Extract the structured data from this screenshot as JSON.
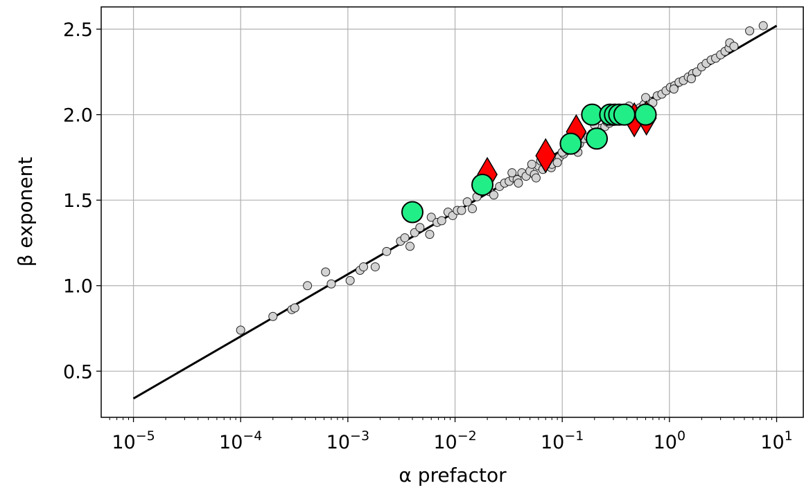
{
  "chart_data": {
    "type": "scatter",
    "title": "",
    "xlabel": "α prefactor",
    "ylabel": "β exponent",
    "x_scale": "log",
    "xlim": [
      5e-06,
      18
    ],
    "ylim": [
      0.23,
      2.63
    ],
    "grid": true,
    "legend": "none",
    "xticks": [
      {
        "value": 1e-05,
        "base": "10",
        "exp": "−5"
      },
      {
        "value": 0.0001,
        "base": "10",
        "exp": "−4"
      },
      {
        "value": 0.001,
        "base": "10",
        "exp": "−3"
      },
      {
        "value": 0.01,
        "base": "10",
        "exp": "−2"
      },
      {
        "value": 0.1,
        "base": "10",
        "exp": "−1"
      },
      {
        "value": 1,
        "base": "10",
        "exp": "0"
      },
      {
        "value": 10,
        "base": "10",
        "exp": "1"
      }
    ],
    "yticks": [
      {
        "value": 0.5,
        "label": "0.5"
      },
      {
        "value": 1.0,
        "label": "1.0"
      },
      {
        "value": 1.5,
        "label": "1.5"
      },
      {
        "value": 2.0,
        "label": "2.0"
      },
      {
        "value": 2.5,
        "label": "2.5"
      }
    ],
    "series": [
      {
        "marker": "circle-small",
        "color": "#d3d3d3",
        "points": [
          [
            0.0001,
            0.74
          ],
          [
            0.0002,
            0.82
          ],
          [
            0.0003,
            0.86
          ],
          [
            0.00032,
            0.87
          ],
          [
            0.00042,
            1.0
          ],
          [
            0.00062,
            1.08
          ],
          [
            0.0007,
            1.01
          ],
          [
            0.00105,
            1.03
          ],
          [
            0.0013,
            1.09
          ],
          [
            0.0014,
            1.11
          ],
          [
            0.0018,
            1.11
          ],
          [
            0.0023,
            1.2
          ],
          [
            0.0031,
            1.26
          ],
          [
            0.0034,
            1.28
          ],
          [
            0.0038,
            1.23
          ],
          [
            0.0042,
            1.31
          ],
          [
            0.0047,
            1.34
          ],
          [
            0.0058,
            1.3
          ],
          [
            0.006,
            1.4
          ],
          [
            0.0068,
            1.37
          ],
          [
            0.0075,
            1.38
          ],
          [
            0.0086,
            1.43
          ],
          [
            0.0095,
            1.41
          ],
          [
            0.0105,
            1.44
          ],
          [
            0.0115,
            1.44
          ],
          [
            0.013,
            1.49
          ],
          [
            0.0145,
            1.45
          ],
          [
            0.016,
            1.52
          ],
          [
            0.019,
            1.56
          ],
          [
            0.021,
            1.55
          ],
          [
            0.023,
            1.53
          ],
          [
            0.026,
            1.58
          ],
          [
            0.029,
            1.6
          ],
          [
            0.032,
            1.61
          ],
          [
            0.035,
            1.63
          ],
          [
            0.038,
            1.62
          ],
          [
            0.042,
            1.66
          ],
          [
            0.046,
            1.64
          ],
          [
            0.05,
            1.67
          ],
          [
            0.055,
            1.65
          ],
          [
            0.06,
            1.7
          ],
          [
            0.066,
            1.68
          ],
          [
            0.072,
            1.71
          ],
          [
            0.079,
            1.69
          ],
          [
            0.086,
            1.74
          ],
          [
            0.094,
            1.75
          ],
          [
            0.103,
            1.77
          ],
          [
            0.112,
            1.79
          ],
          [
            0.122,
            1.8
          ],
          [
            0.133,
            1.84
          ],
          [
            0.145,
            1.83
          ],
          [
            0.16,
            1.86
          ],
          [
            0.175,
            1.87
          ],
          [
            0.19,
            1.89
          ],
          [
            0.21,
            1.9
          ],
          [
            0.23,
            1.92
          ],
          [
            0.25,
            1.93
          ],
          [
            0.275,
            1.95
          ],
          [
            0.3,
            1.96
          ],
          [
            0.33,
            1.97
          ],
          [
            0.36,
            1.98
          ],
          [
            0.4,
            2.0
          ],
          [
            0.44,
            2.01
          ],
          [
            0.48,
            2.03
          ],
          [
            0.53,
            2.04
          ],
          [
            0.58,
            2.06
          ],
          [
            0.64,
            2.08
          ],
          [
            0.7,
            2.07
          ],
          [
            0.77,
            2.11
          ],
          [
            0.85,
            2.12
          ],
          [
            0.93,
            2.14
          ],
          [
            1.02,
            2.16
          ],
          [
            1.12,
            2.17
          ],
          [
            1.23,
            2.19
          ],
          [
            1.35,
            2.2
          ],
          [
            1.5,
            2.22
          ],
          [
            1.65,
            2.24
          ],
          [
            1.8,
            2.25
          ],
          [
            2.0,
            2.28
          ],
          [
            2.2,
            2.3
          ],
          [
            2.45,
            2.32
          ],
          [
            2.7,
            2.33
          ],
          [
            3.0,
            2.35
          ],
          [
            3.3,
            2.37
          ],
          [
            3.6,
            2.39
          ],
          [
            3.65,
            2.42
          ],
          [
            4.0,
            2.4
          ],
          [
            5.6,
            2.49
          ],
          [
            7.5,
            2.52
          ],
          [
            0.052,
            1.71
          ],
          [
            0.063,
            1.73
          ],
          [
            0.08,
            1.71
          ],
          [
            0.1,
            1.78
          ],
          [
            0.2,
            1.94
          ],
          [
            0.26,
            1.96
          ],
          [
            0.42,
            2.05
          ],
          [
            0.6,
            2.1
          ],
          [
            1.1,
            2.15
          ],
          [
            1.6,
            2.21
          ],
          [
            0.034,
            1.66
          ],
          [
            0.039,
            1.6
          ],
          [
            0.057,
            1.63
          ],
          [
            0.09,
            1.72
          ],
          [
            0.14,
            1.78
          ]
        ]
      },
      {
        "marker": "diamond",
        "color": "#ff0000",
        "points": [
          [
            0.02,
            1.65
          ],
          [
            0.07,
            1.76
          ],
          [
            0.135,
            1.9
          ],
          [
            0.47,
            1.97
          ],
          [
            0.61,
            1.98
          ]
        ]
      },
      {
        "marker": "circle-large",
        "color": "#22ee88",
        "points": [
          [
            0.004,
            1.43
          ],
          [
            0.018,
            1.59
          ],
          [
            0.12,
            1.83
          ],
          [
            0.19,
            2.0
          ],
          [
            0.21,
            1.86
          ],
          [
            0.28,
            2.0
          ],
          [
            0.31,
            2.0
          ],
          [
            0.34,
            2.0
          ],
          [
            0.38,
            2.0
          ],
          [
            0.6,
            2.0
          ]
        ]
      }
    ],
    "fit_line": {
      "x": [
        1e-05,
        10
      ],
      "y": [
        0.34,
        2.52
      ],
      "color": "#000000"
    }
  }
}
